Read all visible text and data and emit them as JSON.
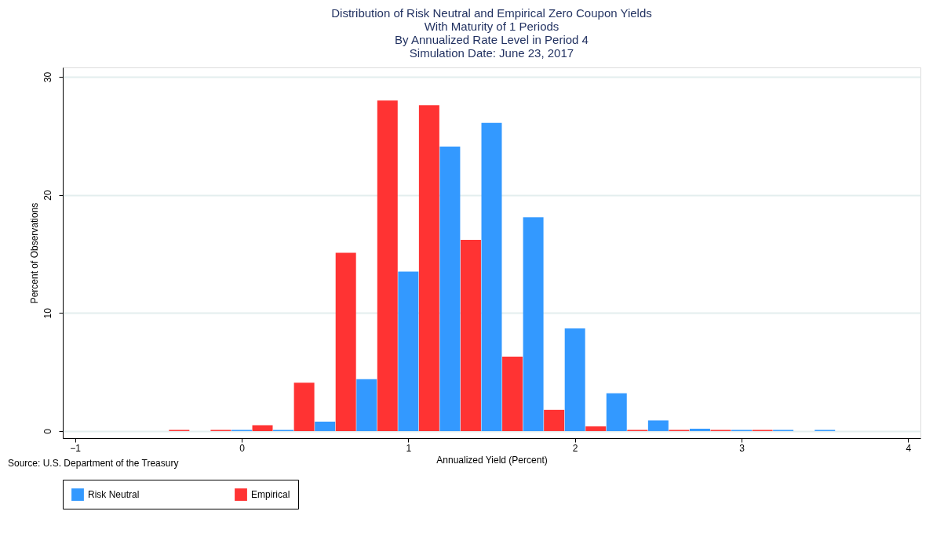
{
  "chart_data": {
    "type": "bar",
    "title": [
      "Distribution of Risk Neutral and Empirical Zero Coupon Yields",
      "With Maturity of 1 Periods",
      "By Annualized Rate Level in Period 4",
      "Simulation Date: June 23, 2017"
    ],
    "xlabel": "Annualized Yield (Percent)",
    "ylabel": "Percent of Observations",
    "series": [
      {
        "name": "Risk Neutral",
        "color": "#3399ff",
        "x": [
          0,
          0.25,
          0.5,
          0.75,
          1.0,
          1.25,
          1.5,
          1.75,
          2.0,
          2.25,
          2.5,
          2.75,
          3.0,
          3.25,
          3.5
        ],
        "values": [
          0.1,
          0.1,
          0.8,
          4.4,
          13.5,
          24.1,
          26.1,
          18.1,
          8.7,
          3.2,
          0.9,
          0.2,
          0.1,
          0.1,
          0.1
        ]
      },
      {
        "name": "Empirical",
        "color": "#ff3333",
        "x": [
          -0.375,
          -0.125,
          0.125,
          0.375,
          0.625,
          0.875,
          1.125,
          1.375,
          1.625,
          1.875,
          2.125,
          2.375,
          2.625,
          2.875,
          3.125
        ],
        "values": [
          0.1,
          0.1,
          0.5,
          4.1,
          15.1,
          28.0,
          27.6,
          16.2,
          6.3,
          1.8,
          0.4,
          0.1,
          0.1,
          0.1,
          0.1
        ]
      }
    ],
    "xlim": [
      -1.05,
      4.05
    ],
    "xticks": [
      -1,
      0,
      1,
      2,
      3,
      4
    ],
    "ylim": [
      -0.6,
      30.8
    ],
    "yticks": [
      0,
      10,
      20,
      30
    ],
    "grid": "y",
    "legend": "bottom",
    "annotations": [
      "Source: U.S. Department of the Treasury"
    ]
  }
}
